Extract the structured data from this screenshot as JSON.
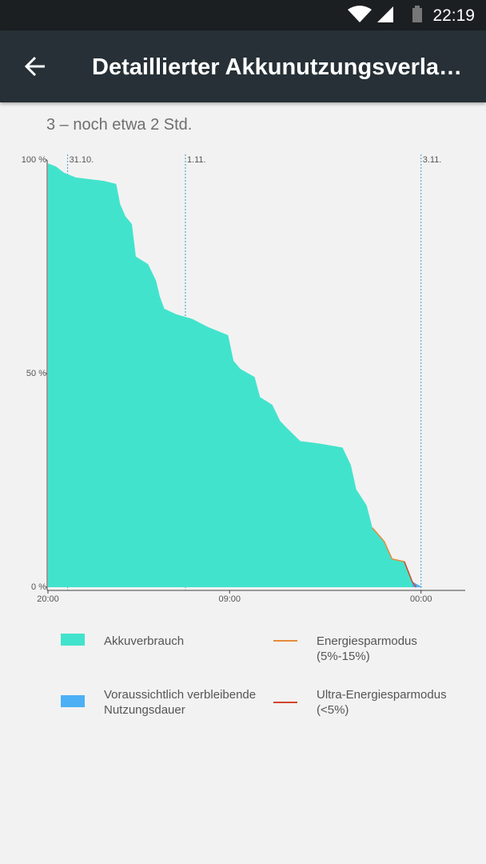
{
  "status_bar": {
    "time": "22:19"
  },
  "app_bar": {
    "title": "Detaillierter Akkunutzungsverla…"
  },
  "subtitle": "3 – noch etwa 2 Std.",
  "chart_data": {
    "type": "area",
    "xlim": [
      0,
      85
    ],
    "ylim": [
      0,
      100
    ],
    "xticks": [
      {
        "value": 0,
        "label": "20:00"
      },
      {
        "value": 37,
        "label": "09:00"
      },
      {
        "value": 76,
        "label": "00:00"
      }
    ],
    "yticks": [
      {
        "value": 0,
        "label": "0 %"
      },
      {
        "value": 50,
        "label": "50 %"
      },
      {
        "value": 100,
        "label": "100 %"
      }
    ],
    "date_markers": [
      {
        "value": 4,
        "label": "31.10."
      },
      {
        "value": 28,
        "label": "1.11."
      },
      {
        "value": 76,
        "label": "3.11."
      }
    ],
    "series": [
      {
        "name": "Akkuverbrauch",
        "type": "area",
        "color": "#42e3cc",
        "x": [
          0,
          1.6,
          3.3,
          5.7,
          11.4,
          13.9,
          14.7,
          15.8,
          17.1,
          17.9,
          20.4,
          22,
          22.8,
          23.7,
          26.1,
          29.4,
          32.6,
          36.7,
          37.8,
          39.2,
          42.1,
          43.2,
          45.7,
          47.3,
          48.9,
          51.4,
          55.5,
          60,
          61.7,
          62.8,
          64.9,
          66.1,
          68.5,
          70.1,
          72.6,
          74.2,
          75
        ],
        "values": [
          99.2,
          98.5,
          97,
          95.9,
          95.1,
          94.4,
          89.7,
          86.8,
          85,
          77.4,
          75.6,
          71.8,
          68,
          65.2,
          63.9,
          62.8,
          60.9,
          59,
          53,
          51.1,
          49.2,
          44.5,
          42.7,
          38.9,
          37,
          34.2,
          33.6,
          32.7,
          28.6,
          22.9,
          19.2,
          13.9,
          10.7,
          6.6,
          6,
          1.3,
          0
        ]
      },
      {
        "name": "Energiesparmodus (5%-15%)",
        "type": "line",
        "color": "#e98a3a",
        "x": [
          66.1,
          68.5,
          70.1,
          72.6
        ],
        "values": [
          13.9,
          10.7,
          6.6,
          6
        ]
      },
      {
        "name": "Voraussichtlich verbleibende Nutzungsdauer",
        "type": "area",
        "color": "#4db0f5",
        "x": [
          74.2,
          76.3
        ],
        "values": [
          1.3,
          0
        ]
      },
      {
        "name": "Ultra-Energiesparmodus (<5%)",
        "type": "line",
        "color": "#d2452a",
        "x": [
          72.6,
          74.2,
          75
        ],
        "values": [
          6,
          1.3,
          0
        ]
      }
    ]
  }
}
